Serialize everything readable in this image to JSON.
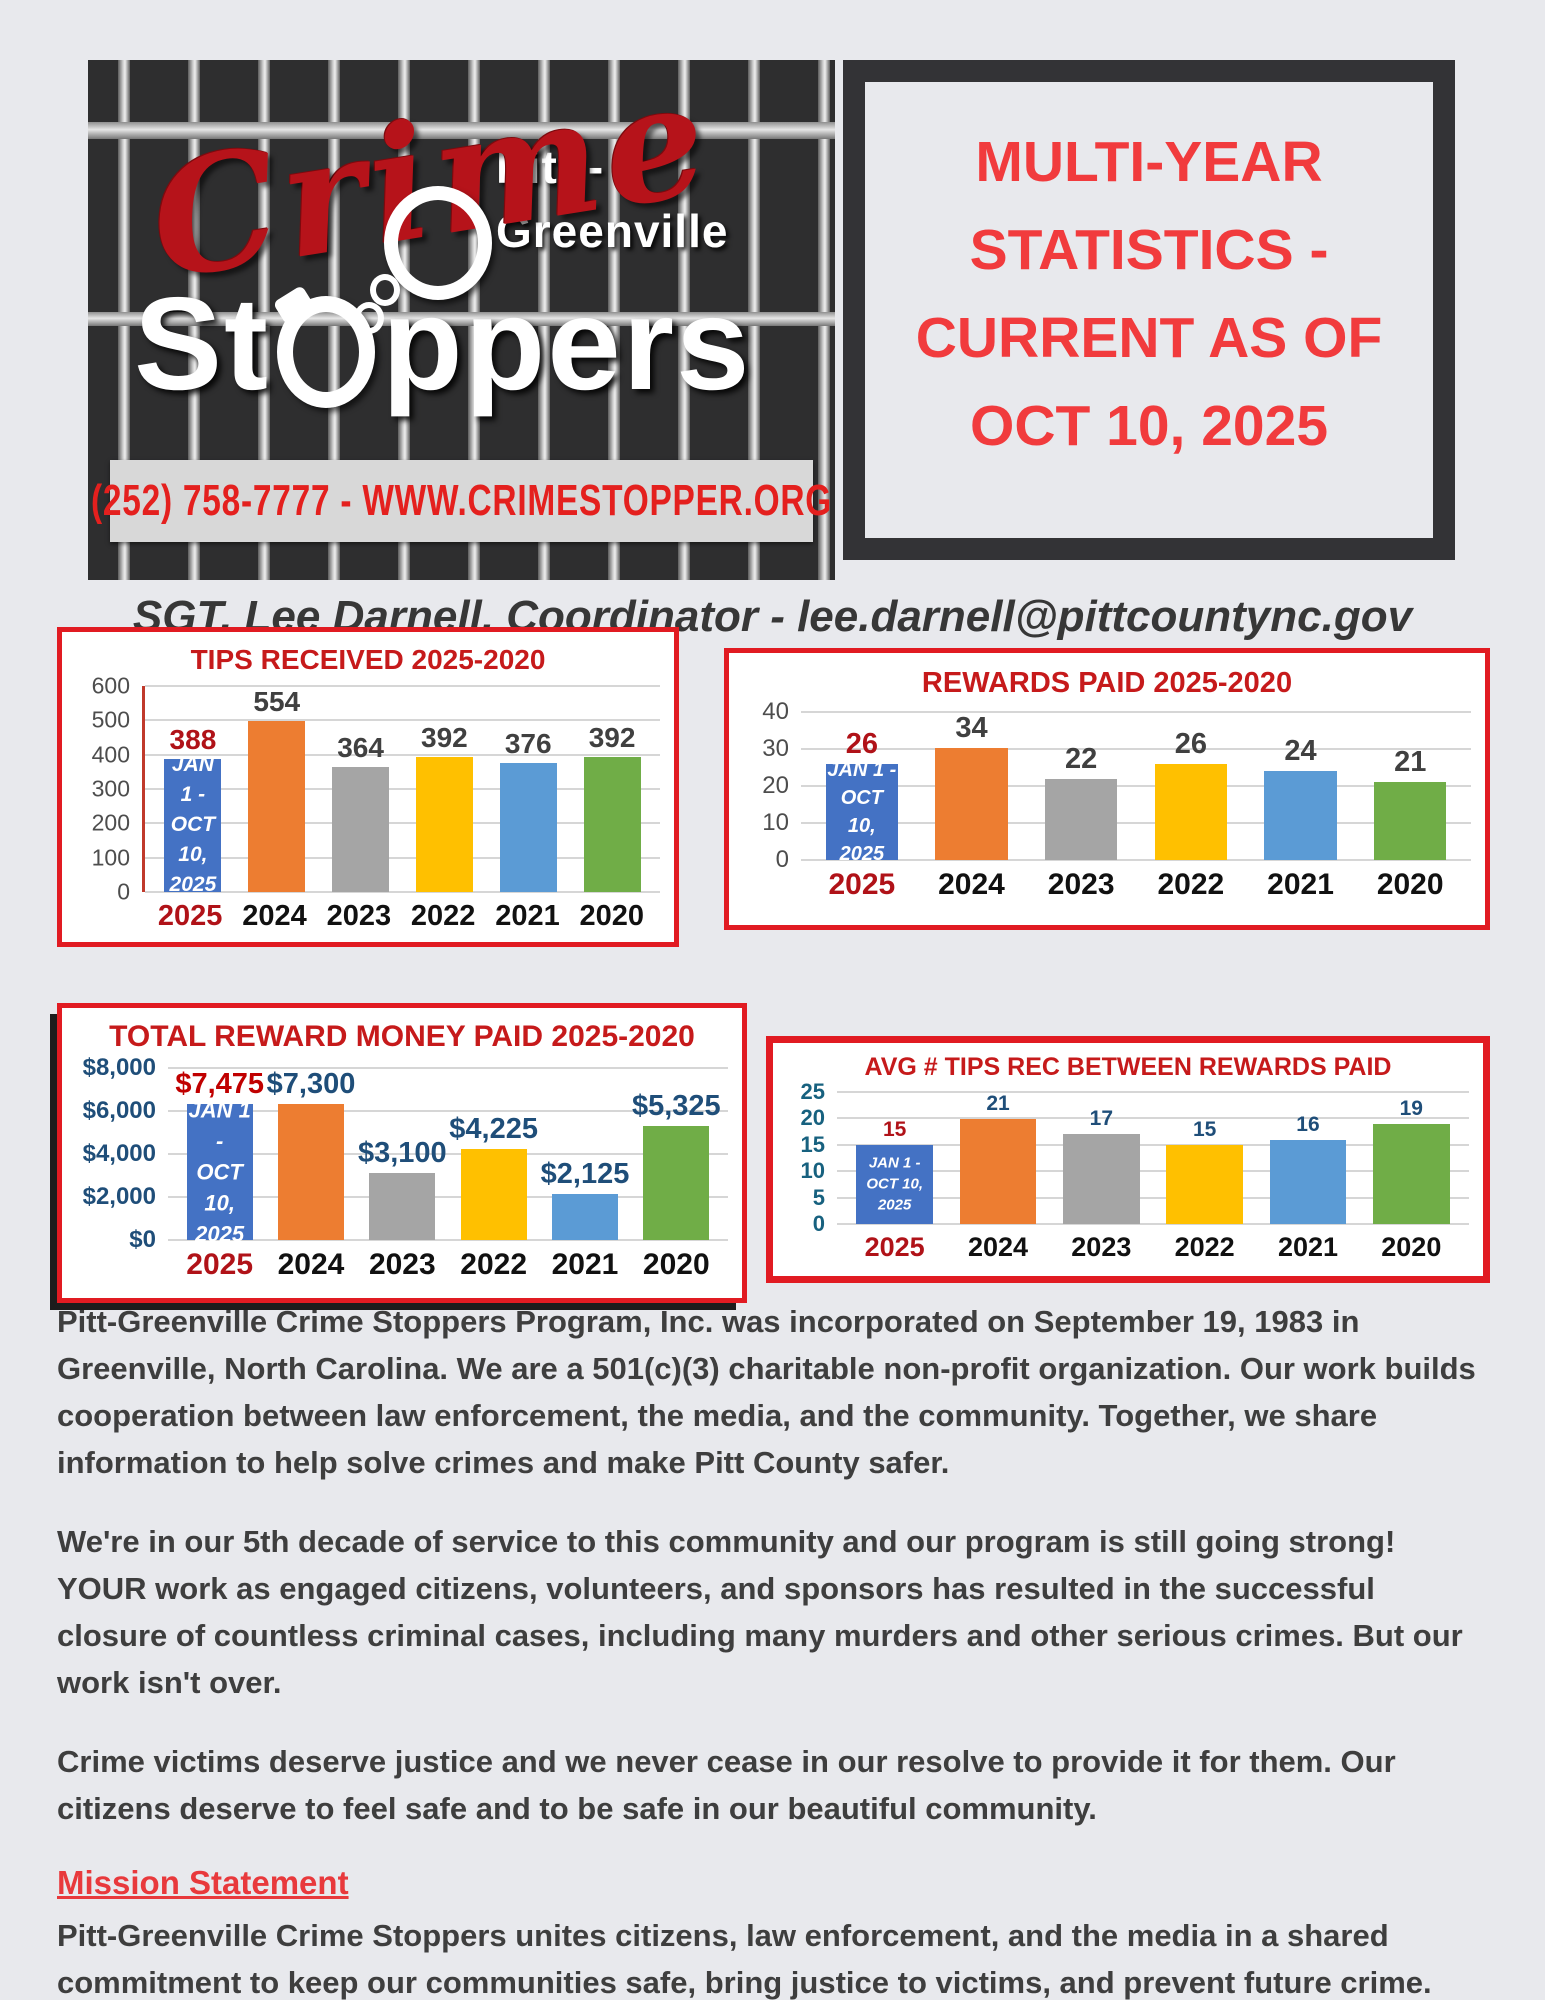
{
  "header": {
    "logo": {
      "crime": "Crime",
      "pitt": "Pitt -",
      "greenville": "Greenville",
      "stoppers_left": "St",
      "stoppers_right": "ppers",
      "phone_line": "(252) 758-7777 - WWW.CRIMESTOPPER.ORG"
    },
    "title_lines": [
      "MULTI-YEAR",
      "STATISTICS -",
      "CURRENT AS OF",
      "OCT 10, 2025"
    ]
  },
  "coordinator_line": "SGT. Lee Darnell, Coordinator - lee.darnell@pittcountync.gov",
  "chart_data": [
    {
      "type": "bar",
      "title": "TIPS RECEIVED 2025-2020",
      "categories": [
        "2025",
        "2024",
        "2023",
        "2022",
        "2021",
        "2020"
      ],
      "values": [
        388,
        554,
        364,
        392,
        376,
        392
      ],
      "value_labels": [
        "388",
        "554",
        "364",
        "392",
        "376",
        "392"
      ],
      "ylim": [
        0,
        600
      ],
      "yticks": [
        "600",
        "500",
        "400",
        "300",
        "200",
        "100",
        "0"
      ],
      "grid": true,
      "legend": false,
      "note_lines": [
        "JAN 1 -",
        "OCT 10,",
        "2025"
      ],
      "bar_colors": [
        "#4472c4",
        "#ed7d31",
        "#a5a5a5",
        "#ffc000",
        "#5b9bd5",
        "#70ad47"
      ],
      "tick_color": "#4d4d4d",
      "label_color": "#404040",
      "first_label_color": "#b01218",
      "xlabel_color": "#111111",
      "first_xlabel_color": "#b01218"
    },
    {
      "type": "bar",
      "title": "REWARDS PAID 2025-2020",
      "categories": [
        "2025",
        "2024",
        "2023",
        "2022",
        "2021",
        "2020"
      ],
      "values": [
        26,
        34,
        22,
        26,
        24,
        21
      ],
      "value_labels": [
        "26",
        "34",
        "22",
        "26",
        "24",
        "21"
      ],
      "ylim": [
        0,
        40
      ],
      "yticks": [
        "40",
        "30",
        "20",
        "10",
        "0"
      ],
      "grid": true,
      "legend": false,
      "note_lines": [
        "JAN 1 -",
        "OCT 10,",
        "2025"
      ],
      "bar_colors": [
        "#4472c4",
        "#ed7d31",
        "#a5a5a5",
        "#ffc000",
        "#5b9bd5",
        "#70ad47"
      ],
      "tick_color": "#4d4d4d",
      "label_color": "#404040",
      "first_label_color": "#b01218",
      "xlabel_color": "#111111",
      "first_xlabel_color": "#b01218"
    },
    {
      "type": "bar",
      "title": "TOTAL REWARD MONEY PAID 2025-2020",
      "categories": [
        "2025",
        "2024",
        "2023",
        "2022",
        "2021",
        "2020"
      ],
      "values": [
        7475,
        7300,
        3100,
        4225,
        2125,
        5325
      ],
      "value_labels": [
        "$7,475",
        "$7,300",
        "$3,100",
        "$4,225",
        "$2,125",
        "$5,325"
      ],
      "ylim": [
        0,
        8000
      ],
      "yticks": [
        "$8,000",
        "$6,000",
        "$4,000",
        "$2,000",
        "$0"
      ],
      "grid": true,
      "legend": false,
      "note_lines": [
        "JAN 1 -",
        "OCT 10,",
        "2025"
      ],
      "bar_colors": [
        "#4472c4",
        "#ed7d31",
        "#a5a5a5",
        "#ffc000",
        "#5b9bd5",
        "#70ad47"
      ],
      "tick_color": "#1f4e79",
      "label_color": "#1f4e79",
      "first_label_color": "#c00000",
      "xlabel_color": "#111111",
      "first_xlabel_color": "#b01218"
    },
    {
      "type": "bar",
      "title": "AVG # TIPS REC BETWEEN REWARDS PAID",
      "categories": [
        "2025",
        "2024",
        "2023",
        "2022",
        "2021",
        "2020"
      ],
      "values": [
        15,
        21,
        17,
        15,
        16,
        19
      ],
      "value_labels": [
        "15",
        "21",
        "17",
        "15",
        "16",
        "19"
      ],
      "ylim": [
        0,
        25
      ],
      "yticks": [
        "25",
        "20",
        "15",
        "10",
        "5",
        "0"
      ],
      "grid": true,
      "legend": false,
      "note_lines": [
        "JAN 1 -",
        "OCT 10,",
        "2025"
      ],
      "bar_colors": [
        "#4472c4",
        "#ed7d31",
        "#a5a5a5",
        "#ffc000",
        "#5b9bd5",
        "#70ad47"
      ],
      "tick_color": "#17617f",
      "label_color": "#1f4e79",
      "first_label_color": "#b01218",
      "xlabel_color": "#111111",
      "first_xlabel_color": "#b01218"
    }
  ],
  "paragraphs": [
    "Pitt-Greenville Crime Stoppers Program, Inc. was incorporated on September 19, 1983 in Greenville, North Carolina. We are a 501(c)(3) charitable non-profit organization. Our work builds cooperation between law enforcement, the media, and the community. Together, we share information to help solve crimes and make Pitt County safer.",
    "We're in our 5th decade of service to this community and our program is still going strong! YOUR work as engaged citizens, volunteers, and sponsors has resulted in the successful closure of countless criminal cases, including many murders and other serious crimes. But our work isn't over.",
    "Crime victims deserve justice and we never cease in our resolve to provide it for them. Our citizens deserve to feel safe and to be safe in our beautiful community."
  ],
  "mission": {
    "title": "Mission Statement",
    "body": "Pitt-Greenville Crime Stoppers unites citizens, law enforcement, and the media in a shared commitment to keep our communities safe, bring justice to victims, and prevent future crime."
  }
}
